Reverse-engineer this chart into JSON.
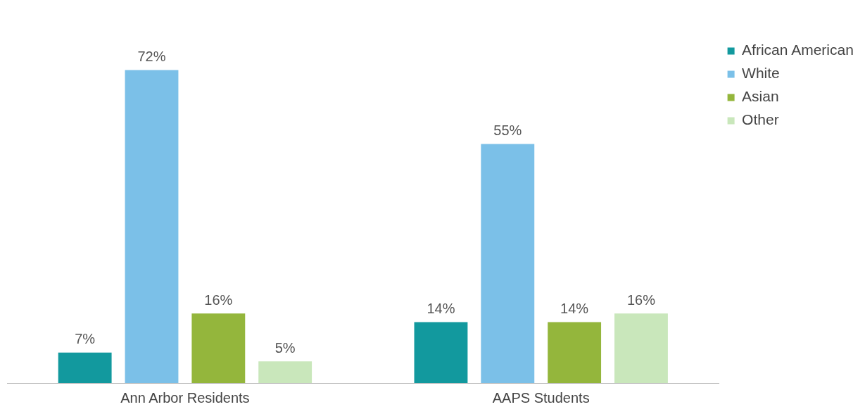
{
  "chart_data": {
    "type": "bar",
    "categories": [
      "Ann Arbor Residents",
      "AAPS Students"
    ],
    "series": [
      {
        "name": "African American",
        "color": "#12999e",
        "values": [
          7,
          14
        ],
        "value_labels": [
          "7%",
          "14%"
        ]
      },
      {
        "name": "White",
        "color": "#7bc0e8",
        "values": [
          72,
          55
        ],
        "value_labels": [
          "72%",
          "55%"
        ]
      },
      {
        "name": "Asian",
        "color": "#94b63c",
        "values": [
          16,
          14
        ],
        "value_labels": [
          "16%",
          "14%"
        ]
      },
      {
        "name": "Other",
        "color": "#c9e7bb",
        "values": [
          5,
          16
        ],
        "value_labels": [
          "5%",
          "16%"
        ]
      }
    ],
    "legend": "top right"
  }
}
